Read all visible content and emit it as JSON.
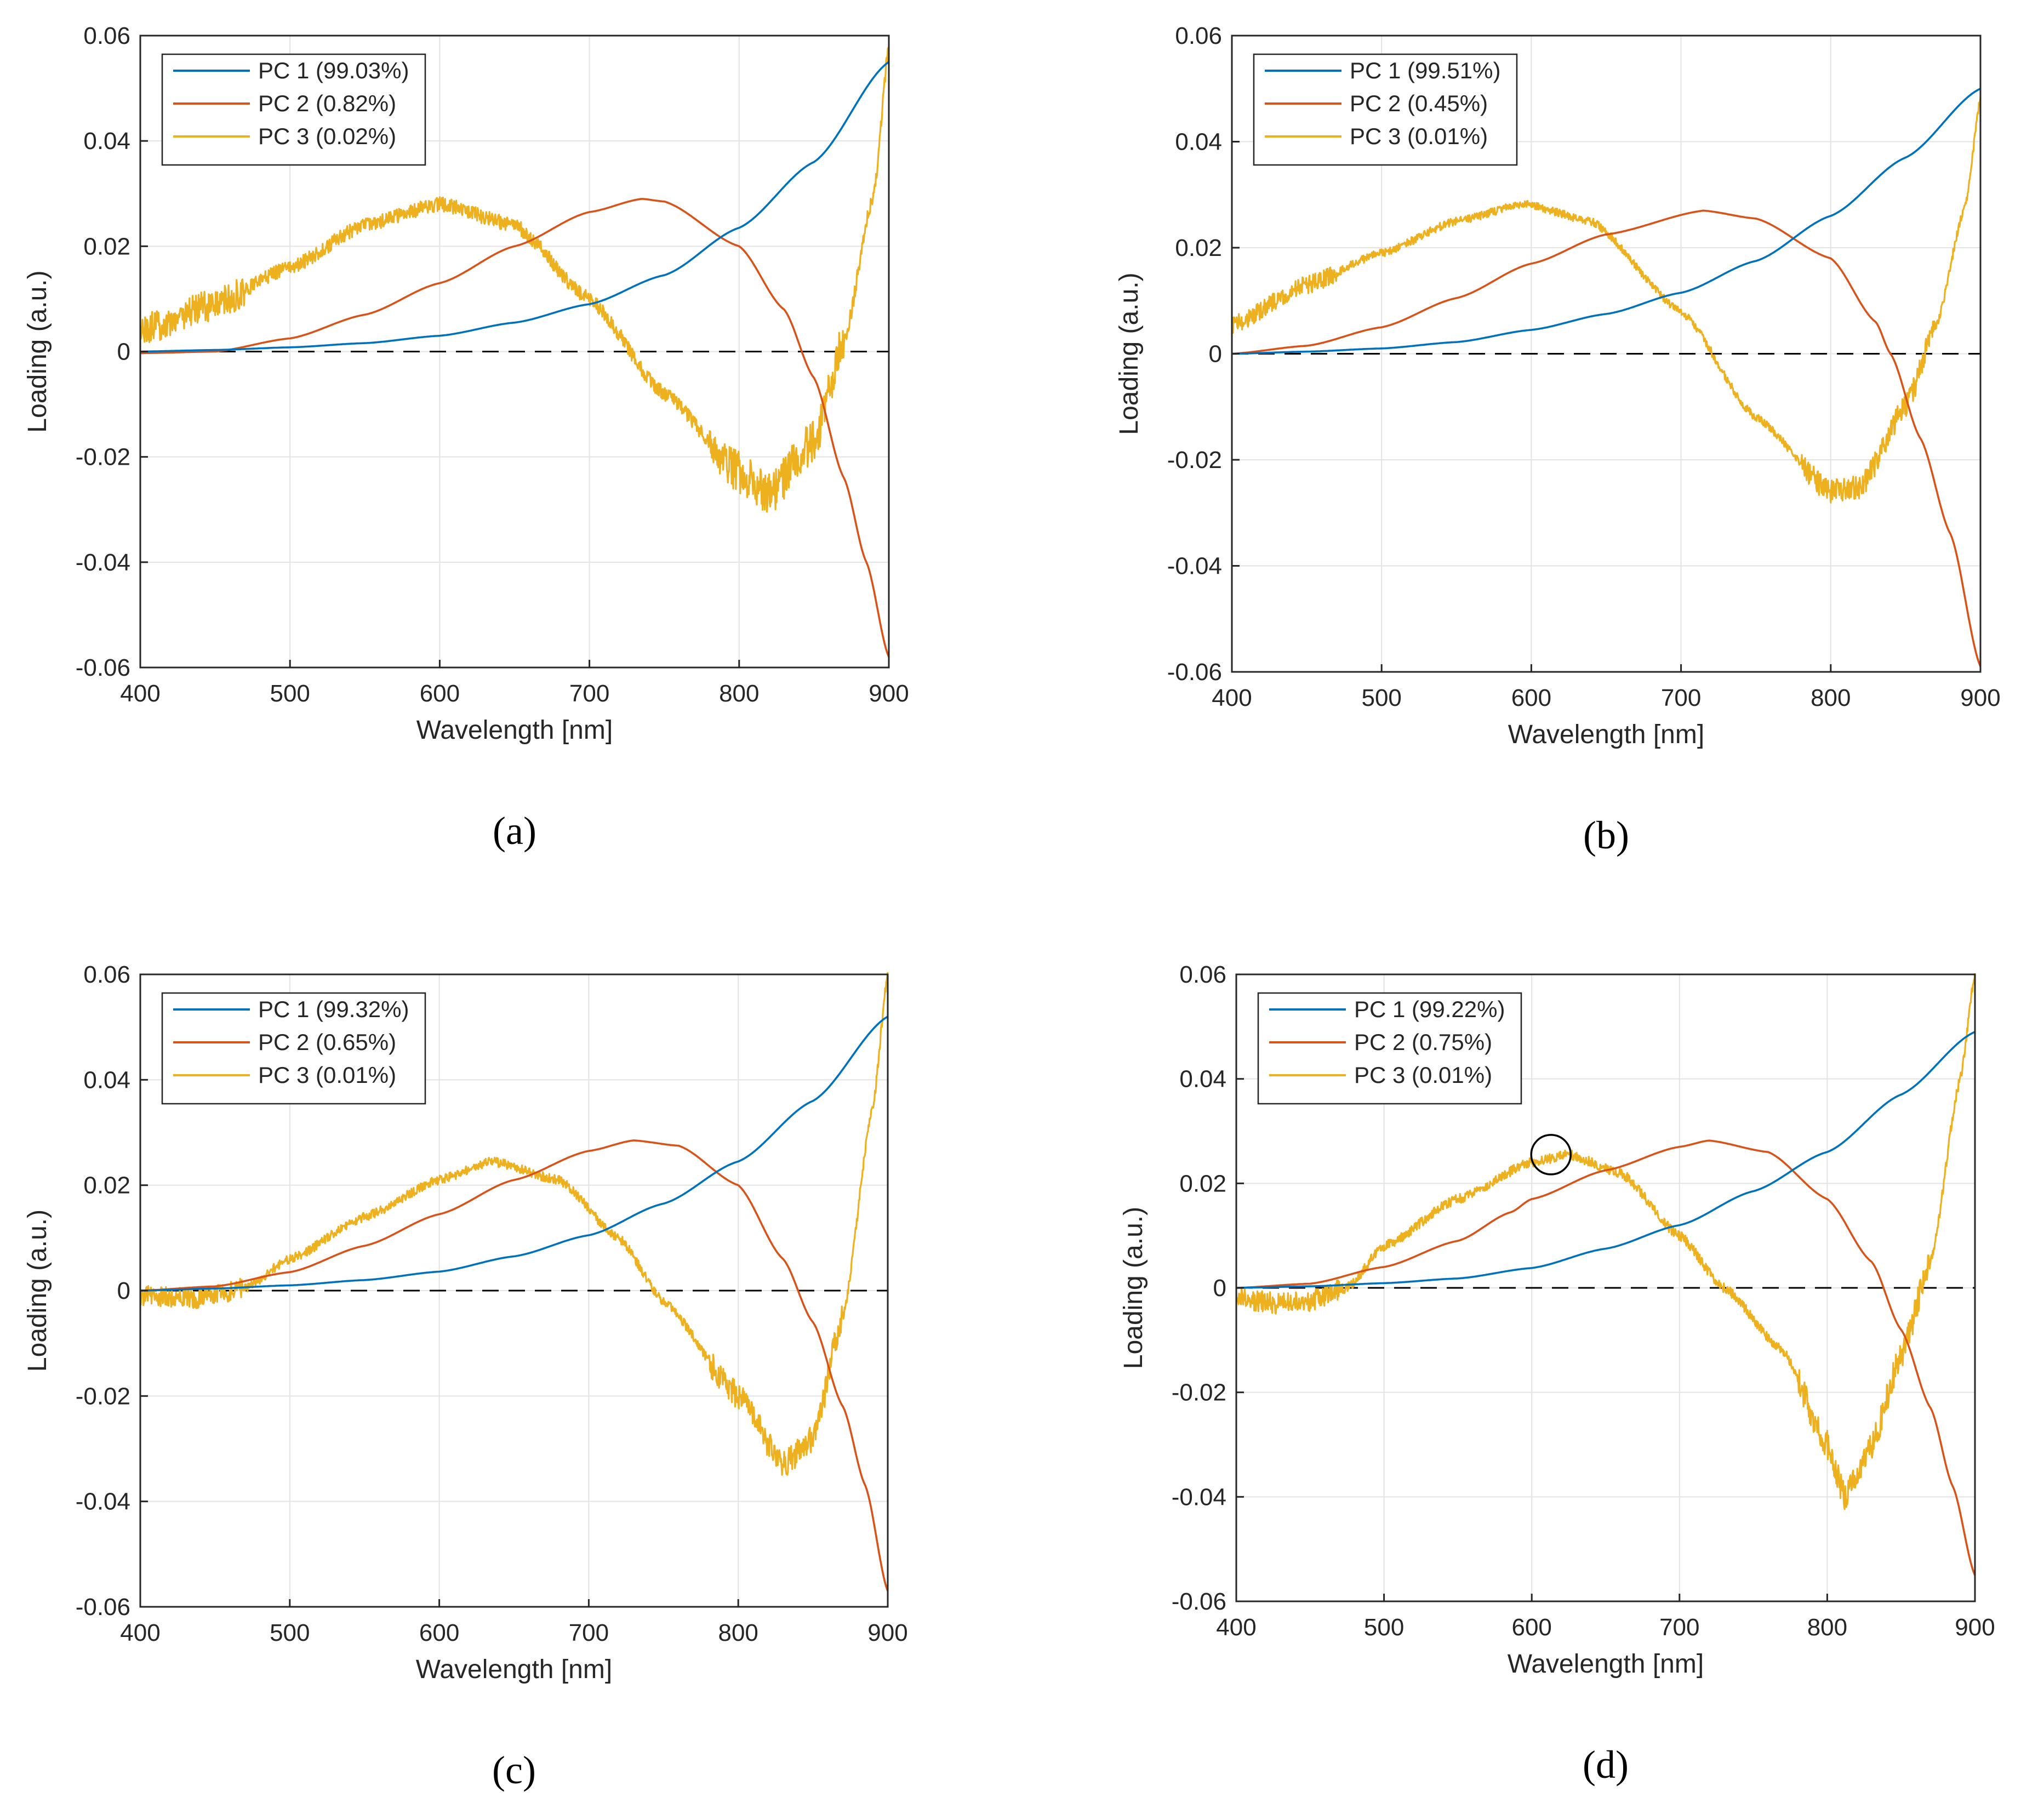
{
  "figure": {
    "panels": [
      "a",
      "b",
      "c",
      "d"
    ],
    "captions": [
      "(a)",
      "(b)",
      "(c)",
      "(d)"
    ]
  },
  "colors": {
    "pc1": "#0072BD",
    "pc2": "#D95319",
    "pc3": "#EDB120",
    "zero_line": "#000000",
    "grid": "#e3e3e3",
    "axis": "#262626"
  },
  "chart_data": [
    {
      "panel": "a",
      "caption": "(a)",
      "type": "line",
      "xlabel": "Wavelength [nm]",
      "ylabel": "Loading (a.u.)",
      "xlim": [
        400,
        900
      ],
      "ylim": [
        -0.06,
        0.06
      ],
      "xticks": [
        400,
        500,
        600,
        700,
        800,
        900
      ],
      "yticks": [
        -0.06,
        -0.04,
        -0.02,
        0,
        0.02,
        0.04,
        0.06
      ],
      "xtick_labels": [
        "400",
        "500",
        "600",
        "700",
        "800",
        "900"
      ],
      "ytick_labels": [
        "-0.06",
        "-0.04",
        "-0.02",
        "0",
        "0.02",
        "0.04",
        "0.06"
      ],
      "grid": true,
      "legend_position": "top-left",
      "zero_line": true,
      "series": [
        {
          "name": "PC 1 (99.03%)",
          "color_key": "pc1",
          "noise": 0,
          "x": [
            400,
            450,
            500,
            550,
            600,
            650,
            700,
            750,
            800,
            850,
            900
          ],
          "y": [
            0.0,
            0.0003,
            0.0008,
            0.0016,
            0.003,
            0.0055,
            0.009,
            0.0145,
            0.0235,
            0.036,
            0.055
          ]
        },
        {
          "name": "PC 2 (0.82%)",
          "color_key": "pc2",
          "noise": 0,
          "x": [
            400,
            450,
            500,
            550,
            600,
            650,
            700,
            735,
            750,
            800,
            830,
            850,
            870,
            885,
            900
          ],
          "y": [
            -0.0003,
            0.0,
            0.0025,
            0.007,
            0.013,
            0.02,
            0.0265,
            0.029,
            0.0285,
            0.02,
            0.008,
            -0.005,
            -0.024,
            -0.04,
            -0.058
          ]
        },
        {
          "name": "PC 3 (0.02%)",
          "color_key": "pc3",
          "noise": 0.0025,
          "x": [
            400,
            450,
            500,
            550,
            600,
            650,
            700,
            750,
            800,
            820,
            850,
            870,
            890,
            900
          ],
          "y": [
            0.004,
            0.009,
            0.016,
            0.024,
            0.028,
            0.024,
            0.01,
            -0.008,
            -0.023,
            -0.027,
            -0.017,
            0.002,
            0.03,
            0.058
          ]
        }
      ]
    },
    {
      "panel": "b",
      "caption": "(b)",
      "type": "line",
      "xlabel": "Wavelength [nm]",
      "ylabel": "Loading (a.u.)",
      "xlim": [
        400,
        900
      ],
      "ylim": [
        -0.06,
        0.06
      ],
      "xticks": [
        400,
        500,
        600,
        700,
        800,
        900
      ],
      "yticks": [
        -0.06,
        -0.04,
        -0.02,
        0,
        0.02,
        0.04,
        0.06
      ],
      "xtick_labels": [
        "400",
        "500",
        "600",
        "700",
        "800",
        "900"
      ],
      "ytick_labels": [
        "-0.06",
        "-0.04",
        "-0.02",
        "0",
        "0.02",
        "0.04",
        "0.06"
      ],
      "grid": true,
      "legend_position": "top-left",
      "zero_line": true,
      "series": [
        {
          "name": "PC 1 (99.51%)",
          "color_key": "pc1",
          "noise": 0,
          "x": [
            400,
            450,
            500,
            550,
            600,
            650,
            700,
            750,
            800,
            850,
            900
          ],
          "y": [
            0.0,
            0.0004,
            0.001,
            0.0022,
            0.0045,
            0.0075,
            0.0115,
            0.0175,
            0.026,
            0.037,
            0.05
          ]
        },
        {
          "name": "PC 2 (0.45%)",
          "color_key": "pc2",
          "noise": 0,
          "x": [
            400,
            450,
            500,
            550,
            600,
            650,
            715,
            750,
            800,
            830,
            840,
            860,
            880,
            900
          ],
          "y": [
            0.0,
            0.0015,
            0.005,
            0.0105,
            0.017,
            0.0225,
            0.027,
            0.0255,
            0.018,
            0.006,
            0.0,
            -0.016,
            -0.034,
            -0.059
          ]
        },
        {
          "name": "PC 3 (0.01%)",
          "color_key": "pc3",
          "noise": 0.0014,
          "x": [
            400,
            450,
            500,
            550,
            595,
            640,
            700,
            750,
            800,
            820,
            850,
            870,
            890,
            900
          ],
          "y": [
            0.0055,
            0.013,
            0.019,
            0.025,
            0.0283,
            0.025,
            0.008,
            -0.012,
            -0.026,
            -0.025,
            -0.01,
            0.005,
            0.028,
            0.048
          ]
        }
      ]
    },
    {
      "panel": "c",
      "caption": "(c)",
      "type": "line",
      "xlabel": "Wavelength [nm]",
      "ylabel": "Loading (a.u.)",
      "xlim": [
        400,
        900
      ],
      "ylim": [
        -0.06,
        0.06
      ],
      "xticks": [
        400,
        500,
        600,
        700,
        800,
        900
      ],
      "yticks": [
        -0.06,
        -0.04,
        -0.02,
        0,
        0.02,
        0.04,
        0.06
      ],
      "xtick_labels": [
        "400",
        "500",
        "600",
        "700",
        "800",
        "900"
      ],
      "ytick_labels": [
        "-0.06",
        "-0.04",
        "-0.02",
        "0",
        "0.02",
        "0.04",
        "0.06"
      ],
      "grid": true,
      "legend_position": "top-left",
      "zero_line": true,
      "series": [
        {
          "name": "PC 1 (99.32%)",
          "color_key": "pc1",
          "noise": 0,
          "x": [
            400,
            450,
            500,
            550,
            600,
            650,
            700,
            750,
            800,
            850,
            900
          ],
          "y": [
            0.0,
            0.0004,
            0.001,
            0.002,
            0.0036,
            0.0065,
            0.0105,
            0.0165,
            0.0245,
            0.036,
            0.052
          ]
        },
        {
          "name": "PC 2 (0.65%)",
          "color_key": "pc2",
          "noise": 0,
          "x": [
            400,
            450,
            500,
            550,
            600,
            650,
            700,
            730,
            760,
            800,
            830,
            850,
            870,
            885,
            900
          ],
          "y": [
            0.0,
            0.0008,
            0.0035,
            0.0085,
            0.0145,
            0.021,
            0.0265,
            0.0285,
            0.0275,
            0.02,
            0.006,
            -0.006,
            -0.022,
            -0.037,
            -0.057
          ]
        },
        {
          "name": "PC 3 (0.01%)",
          "color_key": "pc3",
          "noise": 0.0016,
          "x": [
            400,
            440,
            470,
            500,
            550,
            600,
            635,
            680,
            720,
            750,
            800,
            830,
            850,
            870,
            890,
            900
          ],
          "y": [
            -0.001,
            -0.0015,
            0.0005,
            0.006,
            0.014,
            0.021,
            0.0245,
            0.021,
            0.01,
            -0.002,
            -0.02,
            -0.033,
            -0.028,
            -0.005,
            0.035,
            0.06
          ]
        }
      ]
    },
    {
      "panel": "d",
      "caption": "(d)",
      "type": "line",
      "xlabel": "Wavelength [nm]",
      "ylabel": "Loading (a.u.)",
      "xlim": [
        400,
        900
      ],
      "ylim": [
        -0.06,
        0.06
      ],
      "xticks": [
        400,
        500,
        600,
        700,
        800,
        900
      ],
      "yticks": [
        -0.06,
        -0.04,
        -0.02,
        0,
        0.02,
        0.04,
        0.06
      ],
      "xtick_labels": [
        "400",
        "500",
        "600",
        "700",
        "800",
        "900"
      ],
      "ytick_labels": [
        "-0.06",
        "-0.04",
        "-0.02",
        "0",
        "0.02",
        "0.04",
        "0.06"
      ],
      "grid": true,
      "legend_position": "top-left",
      "zero_line": true,
      "annotation": {
        "type": "circle",
        "x": 613,
        "y": 0.0255
      },
      "series": [
        {
          "name": "PC 1 (99.22%)",
          "color_key": "pc1",
          "noise": 0,
          "x": [
            400,
            450,
            500,
            550,
            600,
            650,
            700,
            750,
            800,
            850,
            900
          ],
          "y": [
            0.0,
            0.0003,
            0.0009,
            0.0018,
            0.0038,
            0.0075,
            0.012,
            0.0185,
            0.026,
            0.037,
            0.049
          ]
        },
        {
          "name": "PC 2 (0.75%)",
          "color_key": "pc2",
          "noise": 0,
          "x": [
            400,
            450,
            500,
            550,
            586,
            600,
            650,
            700,
            720,
            760,
            800,
            830,
            850,
            870,
            885,
            900
          ],
          "y": [
            0.0,
            0.0008,
            0.004,
            0.009,
            0.0145,
            0.017,
            0.0225,
            0.027,
            0.0282,
            0.026,
            0.017,
            0.005,
            -0.008,
            -0.023,
            -0.038,
            -0.055
          ]
        },
        {
          "name": "PC 3 (0.01%)",
          "color_key": "pc3",
          "noise": 0.0017,
          "x": [
            400,
            430,
            450,
            475,
            500,
            550,
            600,
            625,
            660,
            700,
            730,
            770,
            800,
            812,
            830,
            850,
            870,
            890,
            900
          ],
          "y": [
            -0.002,
            -0.003,
            -0.0025,
            0.0,
            0.008,
            0.017,
            0.024,
            0.0255,
            0.022,
            0.01,
            0.0,
            -0.012,
            -0.03,
            -0.04,
            -0.03,
            -0.013,
            0.005,
            0.04,
            0.06
          ]
        }
      ]
    }
  ]
}
